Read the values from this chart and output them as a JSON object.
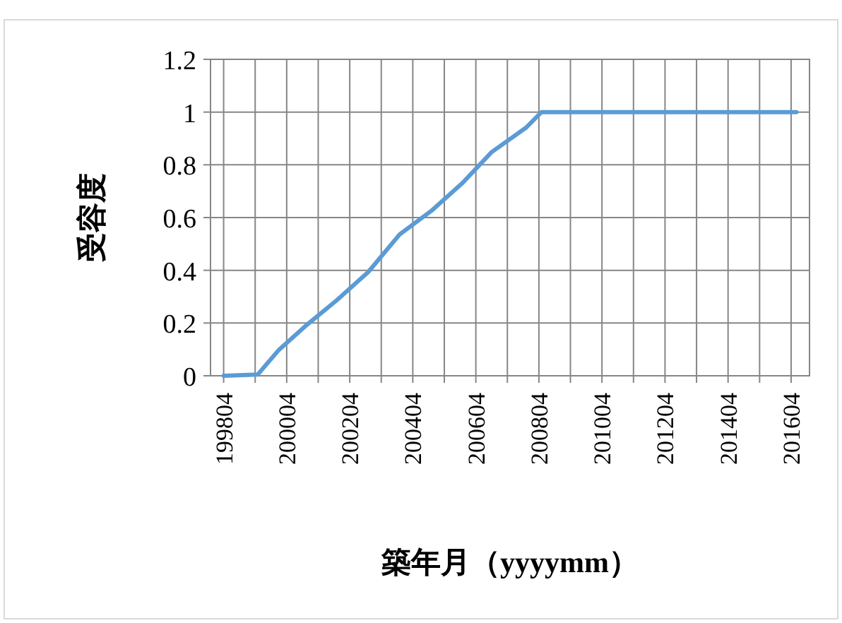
{
  "chart_data": {
    "type": "line",
    "xlabel": "築年月（yyyymm）",
    "ylabel": "受容度",
    "x": [
      "1998-04",
      "1999-05",
      "2000-01",
      "2000-12",
      "2001-11",
      "2002-11",
      "2003-11",
      "2004-11",
      "2005-11",
      "2006-10",
      "2007-11",
      "2008-05",
      "2016-06"
    ],
    "series": [
      {
        "color": "#5b9bd5",
        "values": [
          0,
          0.005,
          0.098,
          0.196,
          0.286,
          0.393,
          0.536,
          0.625,
          0.732,
          0.848,
          0.94,
          1,
          1
        ]
      }
    ],
    "xlim": [
      "1997-11",
      "2016-11"
    ],
    "xticks": [
      {
        "value": "1998-04",
        "label": "199804"
      },
      {
        "value": "1999-04",
        "label": null
      },
      {
        "value": "2000-04",
        "label": "200004"
      },
      {
        "value": "2001-04",
        "label": null
      },
      {
        "value": "2002-04",
        "label": "200204"
      },
      {
        "value": "2003-04",
        "label": null
      },
      {
        "value": "2004-04",
        "label": "200404"
      },
      {
        "value": "2005-04",
        "label": null
      },
      {
        "value": "2006-04",
        "label": "200604"
      },
      {
        "value": "2007-04",
        "label": null
      },
      {
        "value": "2008-04",
        "label": "200804"
      },
      {
        "value": "2009-04",
        "label": null
      },
      {
        "value": "2010-04",
        "label": "201004"
      },
      {
        "value": "2011-04",
        "label": null
      },
      {
        "value": "2012-04",
        "label": "201204"
      },
      {
        "value": "2013-04",
        "label": null
      },
      {
        "value": "2014-04",
        "label": "201404"
      },
      {
        "value": "2015-04",
        "label": null
      },
      {
        "value": "2016-04",
        "label": "201604"
      }
    ],
    "ylim": [
      0,
      1.2
    ],
    "yticks": [
      0,
      {
        "value": 0.2,
        "label": "0.2"
      },
      {
        "value": 0.4,
        "label": "0.4"
      },
      {
        "value": 0.6,
        "label": "0.6"
      },
      {
        "value": 0.8,
        "label": "0.8"
      },
      1,
      {
        "value": 1.2,
        "label": "1.2"
      }
    ],
    "grid": true,
    "marker": "none",
    "line_style": "solid"
  }
}
